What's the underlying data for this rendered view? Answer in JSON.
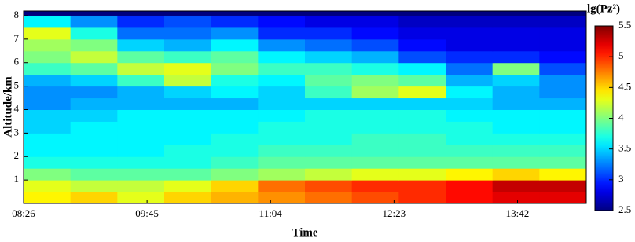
{
  "chart_data": {
    "type": "heatmap",
    "xlabel": "Time",
    "ylabel": "Altitude/km",
    "colorbar_label": "lg(Pz²)",
    "x": [
      521,
      551,
      581,
      611,
      641,
      671,
      701,
      731,
      761,
      791,
      821,
      851
    ],
    "y": [
      0.25,
      0.75,
      1.25,
      1.75,
      2.25,
      2.75,
      3.25,
      3.75,
      4.25,
      4.75,
      5.25,
      5.75,
      6.25,
      6.75,
      7.25,
      7.75
    ],
    "values": [
      [
        4.4,
        4.5,
        4.3,
        4.5,
        4.6,
        4.7,
        4.8,
        4.9,
        5.0,
        5.1,
        5.2,
        5.2
      ],
      [
        4.3,
        4.2,
        4.2,
        4.3,
        4.5,
        4.8,
        4.9,
        5.0,
        5.0,
        5.1,
        5.3,
        5.3
      ],
      [
        4.0,
        3.9,
        3.9,
        3.9,
        4.0,
        4.1,
        4.2,
        4.3,
        4.3,
        4.4,
        4.5,
        4.4
      ],
      [
        3.7,
        3.7,
        3.7,
        3.7,
        3.8,
        3.9,
        3.9,
        3.9,
        3.9,
        3.9,
        3.9,
        3.9
      ],
      [
        3.6,
        3.6,
        3.6,
        3.7,
        3.7,
        3.8,
        3.8,
        3.8,
        3.8,
        3.8,
        3.8,
        3.8
      ],
      [
        3.6,
        3.6,
        3.6,
        3.6,
        3.7,
        3.7,
        3.7,
        3.8,
        3.8,
        3.7,
        3.7,
        3.7
      ],
      [
        3.5,
        3.6,
        3.6,
        3.6,
        3.6,
        3.7,
        3.7,
        3.7,
        3.7,
        3.7,
        3.6,
        3.6
      ],
      [
        3.5,
        3.5,
        3.6,
        3.6,
        3.6,
        3.6,
        3.7,
        3.7,
        3.7,
        3.6,
        3.6,
        3.6
      ],
      [
        3.3,
        3.4,
        3.4,
        3.4,
        3.4,
        3.5,
        3.5,
        3.5,
        3.5,
        3.5,
        3.4,
        3.4
      ],
      [
        3.3,
        3.3,
        3.4,
        3.5,
        3.6,
        3.5,
        3.8,
        4.1,
        4.3,
        3.6,
        3.4,
        3.3
      ],
      [
        3.4,
        3.5,
        3.8,
        4.2,
        3.7,
        3.6,
        3.9,
        4.0,
        3.9,
        3.4,
        3.5,
        3.3
      ],
      [
        3.8,
        3.9,
        4.2,
        4.3,
        4.0,
        3.8,
        3.8,
        3.7,
        3.6,
        3.2,
        4.0,
        3.1
      ],
      [
        4.0,
        4.2,
        3.9,
        3.8,
        3.9,
        3.6,
        3.5,
        3.4,
        3.1,
        3.0,
        3.0,
        2.9
      ],
      [
        4.1,
        4.0,
        3.5,
        3.4,
        3.6,
        3.3,
        3.2,
        3.1,
        2.9,
        2.8,
        2.8,
        2.8
      ],
      [
        4.3,
        3.7,
        3.2,
        3.2,
        3.3,
        3.0,
        3.0,
        2.9,
        2.8,
        2.8,
        2.8,
        2.8
      ],
      [
        3.6,
        3.3,
        3.0,
        3.1,
        3.0,
        2.9,
        2.8,
        2.8,
        2.7,
        2.7,
        2.7,
        2.7
      ]
    ],
    "colormap": "jet",
    "xlim": [
      506,
      866
    ],
    "xticks": [
      {
        "value": 506,
        "label": "08:26"
      },
      {
        "value": 585,
        "label": "09:45"
      },
      {
        "value": 664,
        "label": "11:04"
      },
      {
        "value": 743,
        "label": "12:23"
      },
      {
        "value": 822,
        "label": "13:42"
      }
    ],
    "ylim": [
      0,
      8.2
    ],
    "yticks": [
      1,
      2,
      3,
      4,
      5,
      6,
      7,
      8
    ],
    "clim": [
      2.5,
      5.5
    ],
    "cticks": [
      2.5,
      3,
      3.5,
      4,
      4.5,
      5,
      5.5
    ]
  }
}
